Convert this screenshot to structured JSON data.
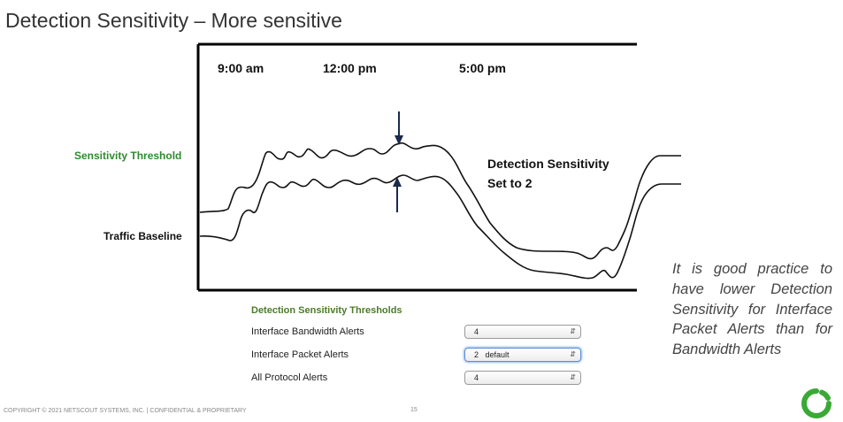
{
  "slide": {
    "title": "Detection Sensitivity – More sensitive",
    "footer": "COPYRIGHT © 2021 NETSCOUT SYSTEMS, INC.  |  CONFIDENTIAL & PROPRIETARY",
    "page_number": "15"
  },
  "diagram": {
    "time_labels": [
      "9:00 am",
      "12:00 pm",
      "5:00 pm"
    ],
    "sensitivity_threshold_label": "Sensitivity Threshold",
    "traffic_baseline_label": "Traffic Baseline",
    "annotation_line1": "Detection Sensitivity",
    "annotation_line2": "Set to 2",
    "threshold_color": "#2e8b2e"
  },
  "settings": {
    "title": "Detection Sensitivity Thresholds",
    "rows": [
      {
        "label": "Interface Bandwidth Alerts",
        "value": "4"
      },
      {
        "label": "Interface Packet Alerts",
        "value": "2   default"
      },
      {
        "label": "All Protocol Alerts",
        "value": "4"
      }
    ]
  },
  "note": "It is good practice to have lower Detection Sensitivity for Interface Packet Alerts than for Bandwidth Alerts",
  "logo_name": "netscout-logo",
  "logo_color": "#3aa935"
}
